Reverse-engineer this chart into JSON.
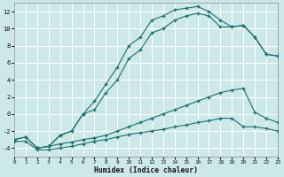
{
  "xlabel": "Humidex (Indice chaleur)",
  "bg_color": "#cde8e8",
  "grid_color": "#c0d8d8",
  "line_color": "#1a7070",
  "xlim": [
    0,
    23
  ],
  "ylim": [
    -5,
    13
  ],
  "xticks": [
    0,
    1,
    2,
    3,
    4,
    5,
    6,
    7,
    8,
    9,
    10,
    11,
    12,
    13,
    14,
    15,
    16,
    17,
    18,
    19,
    20,
    21,
    22,
    23
  ],
  "yticks": [
    -4,
    -2,
    0,
    2,
    4,
    6,
    8,
    10,
    12
  ],
  "series1_x": [
    0,
    1,
    2,
    3,
    4,
    5,
    6,
    7,
    8,
    9,
    10,
    11,
    12,
    13,
    14,
    15,
    16,
    17,
    18,
    19,
    20,
    21,
    22,
    23
  ],
  "series1_y": [
    -3.0,
    -2.7,
    -4.0,
    -3.8,
    -2.5,
    -2.0,
    0.0,
    1.5,
    3.5,
    5.5,
    8.0,
    9.0,
    11.0,
    11.5,
    12.2,
    12.4,
    12.6,
    12.0,
    11.0,
    10.2,
    10.4,
    9.0,
    7.0,
    6.8
  ],
  "series2_x": [
    0,
    1,
    2,
    3,
    4,
    5,
    6,
    7,
    8,
    9,
    10,
    11,
    12,
    13,
    14,
    15,
    16,
    17,
    18,
    19,
    20,
    21,
    22,
    23
  ],
  "series2_y": [
    -3.0,
    -2.7,
    -4.0,
    -3.8,
    -2.5,
    -2.0,
    0.0,
    0.5,
    2.5,
    4.0,
    6.5,
    7.5,
    9.5,
    10.0,
    11.0,
    11.5,
    11.8,
    11.5,
    10.2,
    10.2,
    10.4,
    9.0,
    7.0,
    6.8
  ],
  "series3_x": [
    2,
    3,
    4,
    5,
    6,
    7,
    8,
    9,
    10,
    11,
    12,
    13,
    14,
    15,
    16,
    17,
    18,
    19,
    20,
    21,
    22,
    23
  ],
  "series3_y": [
    -4.0,
    -3.8,
    -3.5,
    -3.3,
    -3.0,
    -2.8,
    -2.5,
    -2.0,
    -1.5,
    -1.0,
    -0.5,
    0.0,
    0.5,
    1.0,
    1.5,
    2.0,
    2.5,
    2.8,
    3.0,
    0.2,
    -0.5,
    -1.0
  ],
  "series4_x": [
    0,
    1,
    2,
    3,
    4,
    5,
    6,
    7,
    8,
    9,
    10,
    11,
    12,
    13,
    14,
    15,
    16,
    17,
    18,
    19,
    20,
    21,
    22,
    23
  ],
  "series4_y": [
    -3.2,
    -3.2,
    -4.2,
    -4.2,
    -4.0,
    -3.8,
    -3.5,
    -3.2,
    -3.0,
    -2.7,
    -2.4,
    -2.2,
    -2.0,
    -1.8,
    -1.5,
    -1.3,
    -1.0,
    -0.8,
    -0.5,
    -0.5,
    -1.5,
    -1.5,
    -1.7,
    -2.0
  ]
}
